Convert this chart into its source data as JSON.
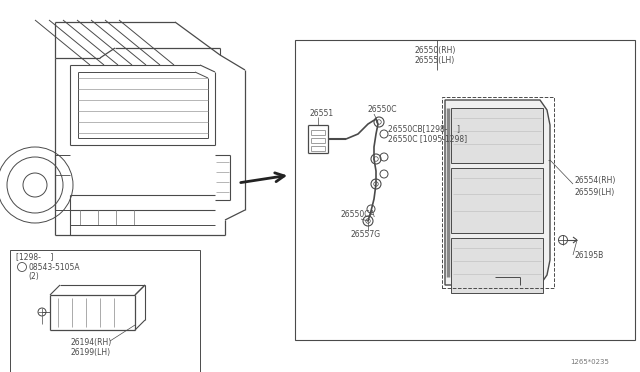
{
  "bg_color": "#ffffff",
  "line_color": "#4a4a4a",
  "text_color": "#4a4a4a",
  "title_code": "1265*0235",
  "font_size_label": 6.0,
  "font_size_tiny": 5.5,
  "car_outline_color": "#555555",
  "box_color": "#ffffff",
  "label_26550_RH": "26550(RH)",
  "label_26555_LH": "26555(LH)",
  "label_26551": "26551",
  "label_26550C": "26550C",
  "label_26550CB": "26550CB[1298-    ]",
  "label_26550C2": "26550C [1095-1298]",
  "label_26554_RH": "26554(RH)",
  "label_26559_LH": "26559(LH)",
  "label_26550CA": "26550CA",
  "label_26557G": "26557G",
  "label_26195B": "26195B",
  "label_inset_note": "[1298-    ]",
  "label_screw": "08543-5105A",
  "label_screw_qty": "(2)",
  "label_26194_RH": "26194(RH)",
  "label_26199_LH": "26199(LH)"
}
